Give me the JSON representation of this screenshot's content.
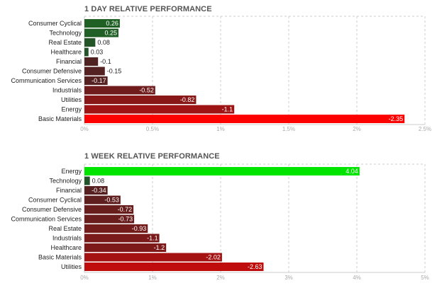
{
  "chart_data": [
    {
      "type": "bar",
      "orientation": "horizontal",
      "title": "1 DAY RELATIVE PERFORMANCE",
      "categories": [
        "Consumer Cyclical",
        "Technology",
        "Real Estate",
        "Healthcare",
        "Financial",
        "Consumer Defensive",
        "Communication Services",
        "Industrials",
        "Utilities",
        "Energy",
        "Basic Materials"
      ],
      "values": [
        0.26,
        0.25,
        0.08,
        0.03,
        -0.1,
        -0.15,
        -0.17,
        -0.52,
        -0.82,
        -1.1,
        -2.35
      ],
      "value_labels": [
        "0.26",
        "0.25",
        "0.08",
        "0.03",
        "-0.1",
        "-0.15",
        "-0.17",
        "-0.52",
        "-0.82",
        "-1.1",
        "-2.35"
      ],
      "xticks": [
        "0%",
        "0.5%",
        "1%",
        "1.5%",
        "2%",
        "2.5%"
      ],
      "xlim": [
        0,
        2.5
      ],
      "grid": true
    },
    {
      "type": "bar",
      "orientation": "horizontal",
      "title": "1 WEEK RELATIVE PERFORMANCE",
      "categories": [
        "Energy",
        "Technology",
        "Financial",
        "Consumer Cyclical",
        "Consumer Defensive",
        "Communication Services",
        "Real Estate",
        "Industrials",
        "Healthcare",
        "Basic Materials",
        "Utilities"
      ],
      "values": [
        4.04,
        0.08,
        -0.34,
        -0.53,
        -0.72,
        -0.73,
        -0.93,
        -1.1,
        -1.2,
        -2.02,
        -2.63
      ],
      "value_labels": [
        "4.04",
        "0.08",
        "-0.34",
        "-0.53",
        "-0.72",
        "-0.73",
        "-0.93",
        "-1.1",
        "-1.2",
        "-2.02",
        "-2.63"
      ],
      "xticks": [
        "0%",
        "1%",
        "2%",
        "3%",
        "4%",
        "5%"
      ],
      "xlim": [
        0,
        5
      ],
      "grid": true
    }
  ]
}
